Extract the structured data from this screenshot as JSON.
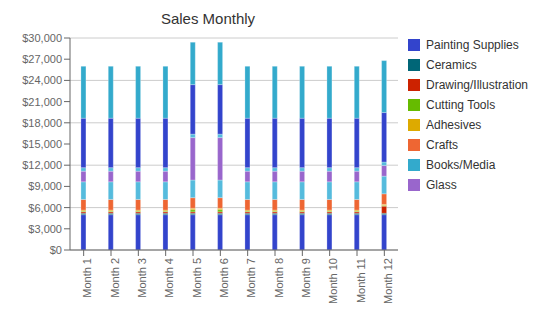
{
  "chart_data": {
    "type": "bar",
    "title": "Sales Monthly",
    "stacked": true,
    "grid": true,
    "legend": "right",
    "categories": [
      "Month 1",
      "Month 2",
      "Month 3",
      "Month 4",
      "Month 5",
      "Month 6",
      "Month 7",
      "Month 8",
      "Month 9",
      "Month 10",
      "Month 11",
      "Month 12"
    ],
    "series": [
      {
        "name": "Painting Supplies",
        "color": "#3344cc",
        "values": [
          5000,
          5000,
          5000,
          5000,
          5000,
          5000,
          5000,
          5000,
          5000,
          5000,
          5000,
          5000
        ]
      },
      {
        "name": "Ceramics",
        "color": "#006677",
        "values": [
          200,
          200,
          200,
          200,
          200,
          200,
          200,
          200,
          200,
          200,
          200,
          200
        ]
      },
      {
        "name": "Drawing/Illustration",
        "color": "#cc2200",
        "values": [
          200,
          200,
          200,
          200,
          200,
          200,
          200,
          200,
          200,
          200,
          200,
          1000
        ]
      },
      {
        "name": "Cutting Tools",
        "color": "#66bb00",
        "values": [
          100,
          100,
          100,
          100,
          300,
          300,
          100,
          100,
          100,
          100,
          100,
          100
        ]
      },
      {
        "name": "Adhesives",
        "color": "#ddaa00",
        "values": [
          150,
          150,
          150,
          150,
          200,
          200,
          150,
          150,
          150,
          150,
          150,
          150
        ]
      },
      {
        "name": "Crafts",
        "color": "#ee6633",
        "values": [
          1500,
          1500,
          1500,
          1500,
          1500,
          1500,
          1500,
          1500,
          1500,
          1500,
          1500,
          1500
        ]
      },
      {
        "name": "Books/Media",
        "color": "#55bbdd",
        "values": [
          2500,
          2500,
          2500,
          2500,
          2500,
          2500,
          2500,
          2500,
          2500,
          2500,
          2500,
          2500
        ]
      },
      {
        "name": "Glass",
        "color": "#9966cc",
        "values": [
          1500,
          1500,
          1500,
          1500,
          6000,
          6000,
          1500,
          1500,
          1500,
          1500,
          1500,
          1500
        ]
      },
      {
        "name": "Books/Media",
        "color": "#55bbdd",
        "values": [
          500,
          500,
          500,
          500,
          500,
          500,
          500,
          500,
          500,
          500,
          500,
          500
        ]
      },
      {
        "name": "Painting Supplies",
        "color": "#3344cc",
        "values": [
          7000,
          7000,
          7000,
          7000,
          7000,
          7000,
          7000,
          7000,
          7000,
          7000,
          7000,
          7000
        ]
      },
      {
        "name": "Books/Media",
        "color": "#33aacc",
        "values": [
          7350,
          7350,
          7350,
          7350,
          6000,
          6000,
          7350,
          7350,
          7350,
          7350,
          7350,
          7350
        ]
      }
    ],
    "ylim": [
      0,
      30000
    ],
    "yticks": [
      {
        "value": 0,
        "label": "$0"
      },
      {
        "value": 3000,
        "label": "$3,000"
      },
      {
        "value": 6000,
        "label": "$6,000"
      },
      {
        "value": 9000,
        "label": "$9,000"
      },
      {
        "value": 12000,
        "label": "$12,000"
      },
      {
        "value": 15000,
        "label": "$15,000"
      },
      {
        "value": 18000,
        "label": "$18,000"
      },
      {
        "value": 21000,
        "label": "$21,000"
      },
      {
        "value": 24000,
        "label": "$24,000"
      },
      {
        "value": 27000,
        "label": "$27,000"
      },
      {
        "value": 30000,
        "label": "$30,000"
      }
    ]
  }
}
